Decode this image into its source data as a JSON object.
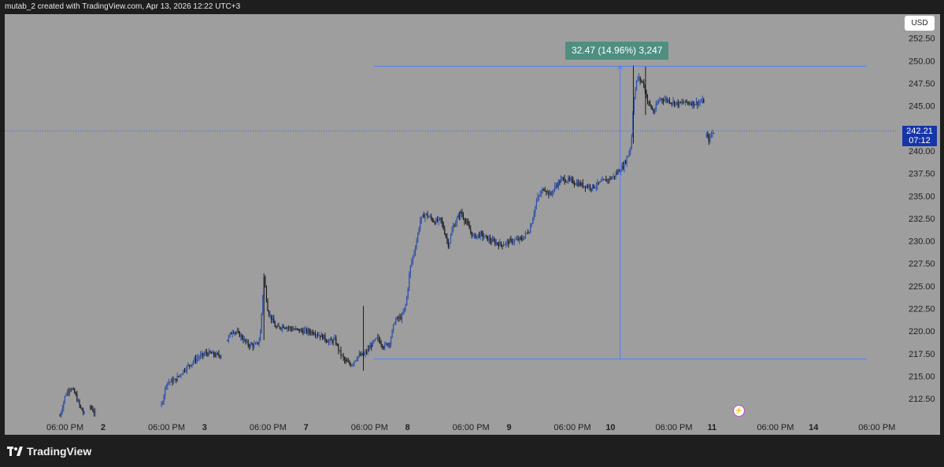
{
  "header": {
    "text": "mutab_2 created with TradingView.com, Apr 13, 2026 12:22 UTC+3"
  },
  "currency": "USD",
  "last_price": {
    "price": "242.21",
    "countdown": "07:12"
  },
  "measure": {
    "label": "32.47 (14.96%) 3,247",
    "from": 216.9,
    "to": 249.4,
    "x_start": 3.04,
    "x_end": 7.9
  },
  "footer": {
    "brand": "TradingView"
  },
  "icons": {
    "bolt": "lightning-icon",
    "logo": "tradingview-logo-icon"
  },
  "colors": {
    "background": "#9e9e9e",
    "candle_up": "#2f4fa8",
    "candle_down": "#1a1a1a",
    "measure": "#4e7fff",
    "measure_label": "#4e8f80",
    "price_tag": "#1635a8"
  },
  "chart_data": {
    "type": "candlestick",
    "y_range": [
      210.5,
      254.2
    ],
    "x_range": [
      -0.48,
      8.73
    ],
    "y_ticks": [
      "252.50",
      "250.00",
      "247.50",
      "245.00",
      "240.00",
      "237.50",
      "235.00",
      "232.50",
      "230.00",
      "227.50",
      "225.00",
      "222.50",
      "220.00",
      "217.50",
      "215.00",
      "212.50"
    ],
    "x_ticks": [
      {
        "x": 0,
        "label": "06:00 PM"
      },
      {
        "x": 0.375,
        "label": "2"
      },
      {
        "x": 1,
        "label": "06:00 PM"
      },
      {
        "x": 1.375,
        "label": "3"
      },
      {
        "x": 2,
        "label": "06:00 PM"
      },
      {
        "x": 2.375,
        "label": "7"
      },
      {
        "x": 3,
        "label": "06:00 PM"
      },
      {
        "x": 3.375,
        "label": "8"
      },
      {
        "x": 4,
        "label": "06:00 PM"
      },
      {
        "x": 4.375,
        "label": "9"
      },
      {
        "x": 5,
        "label": "06:00 PM"
      },
      {
        "x": 5.375,
        "label": "10"
      },
      {
        "x": 6,
        "label": "06:00 PM"
      },
      {
        "x": 6.375,
        "label": "11"
      },
      {
        "x": 7,
        "label": "06:00 PM"
      },
      {
        "x": 7.375,
        "label": "14"
      },
      {
        "x": 8,
        "label": "06:00 PM"
      }
    ],
    "price_line": 242.21,
    "segments": [
      {
        "x": [
          -0.05,
          0.2
        ],
        "path": [
          [
            -0.05,
            210.6
          ],
          [
            0.0,
            212.8
          ],
          [
            0.05,
            213.8
          ],
          [
            0.1,
            213.0
          ],
          [
            0.15,
            211.5
          ],
          [
            0.2,
            210.6
          ]
        ]
      },
      {
        "x": [
          0.25,
          0.3
        ],
        "path": [
          [
            0.25,
            211.6
          ],
          [
            0.3,
            210.8
          ]
        ]
      },
      {
        "x": [
          0.95,
          1.55
        ],
        "path": [
          [
            0.95,
            211.8
          ],
          [
            1.0,
            214.3
          ],
          [
            1.08,
            214.5
          ],
          [
            1.18,
            215.8
          ],
          [
            1.3,
            217.0
          ],
          [
            1.4,
            217.6
          ],
          [
            1.5,
            217.3
          ],
          [
            1.55,
            217.4
          ]
        ]
      },
      {
        "x": [
          1.6,
          3.9
        ],
        "path": [
          [
            1.6,
            219.0
          ],
          [
            1.65,
            220.1
          ],
          [
            1.72,
            219.6
          ],
          [
            1.8,
            218.5
          ],
          [
            1.88,
            218.4
          ],
          [
            1.92,
            219.1
          ],
          [
            1.96,
            226.0
          ],
          [
            2.0,
            222.2
          ],
          [
            2.08,
            220.3
          ],
          [
            2.15,
            220.6
          ],
          [
            2.25,
            220.2
          ],
          [
            2.35,
            220.0
          ],
          [
            2.45,
            219.9
          ],
          [
            2.55,
            219.3
          ],
          [
            2.6,
            218.8
          ],
          [
            2.66,
            219.0
          ],
          [
            2.7,
            217.8
          ],
          [
            2.76,
            216.6
          ],
          [
            2.82,
            216.3
          ],
          [
            2.88,
            217.2
          ],
          [
            2.95,
            217.4
          ],
          [
            3.02,
            218.5
          ],
          [
            3.08,
            219.2
          ],
          [
            3.14,
            218.3
          ],
          [
            3.2,
            218.8
          ],
          [
            3.25,
            221.2
          ],
          [
            3.32,
            221.6
          ],
          [
            3.36,
            223.0
          ],
          [
            3.4,
            227.0
          ],
          [
            3.46,
            229.8
          ],
          [
            3.5,
            232.3
          ],
          [
            3.55,
            233.0
          ],
          [
            3.65,
            232.1
          ],
          [
            3.7,
            232.4
          ],
          [
            3.74,
            231.0
          ],
          [
            3.78,
            229.5
          ],
          [
            3.82,
            231.5
          ],
          [
            3.88,
            232.8
          ],
          [
            3.9,
            233.2
          ]
        ]
      },
      {
        "x": [
          3.9,
          6.3
        ],
        "path": [
          [
            3.9,
            233.2
          ],
          [
            3.96,
            231.9
          ],
          [
            4.02,
            230.5
          ],
          [
            4.1,
            230.7
          ],
          [
            4.2,
            230.0
          ],
          [
            4.3,
            229.6
          ],
          [
            4.4,
            230.0
          ],
          [
            4.5,
            230.2
          ],
          [
            4.58,
            231.3
          ],
          [
            4.65,
            234.6
          ],
          [
            4.72,
            235.9
          ],
          [
            4.78,
            235.1
          ],
          [
            4.84,
            236.2
          ],
          [
            4.9,
            236.9
          ],
          [
            5.0,
            236.6
          ],
          [
            5.1,
            236.2
          ],
          [
            5.2,
            236.0
          ],
          [
            5.3,
            236.6
          ],
          [
            5.4,
            237.1
          ],
          [
            5.5,
            238.3
          ],
          [
            5.55,
            239.6
          ],
          [
            5.58,
            240.8
          ],
          [
            5.6,
            245.5
          ],
          [
            5.64,
            248.2
          ],
          [
            5.7,
            247.5
          ],
          [
            5.74,
            245.5
          ],
          [
            5.8,
            244.3
          ],
          [
            5.86,
            245.8
          ],
          [
            5.92,
            245.7
          ],
          [
            6.0,
            245.4
          ],
          [
            6.05,
            245.2
          ],
          [
            6.1,
            245.4
          ],
          [
            6.2,
            245.3
          ],
          [
            6.25,
            245.4
          ],
          [
            6.3,
            245.5
          ]
        ]
      },
      {
        "x": [
          6.32,
          6.4
        ],
        "path": [
          [
            6.32,
            241.7
          ],
          [
            6.34,
            241.2
          ],
          [
            6.36,
            241.6
          ],
          [
            6.38,
            242.0
          ],
          [
            6.4,
            242.2
          ]
        ]
      }
    ]
  }
}
